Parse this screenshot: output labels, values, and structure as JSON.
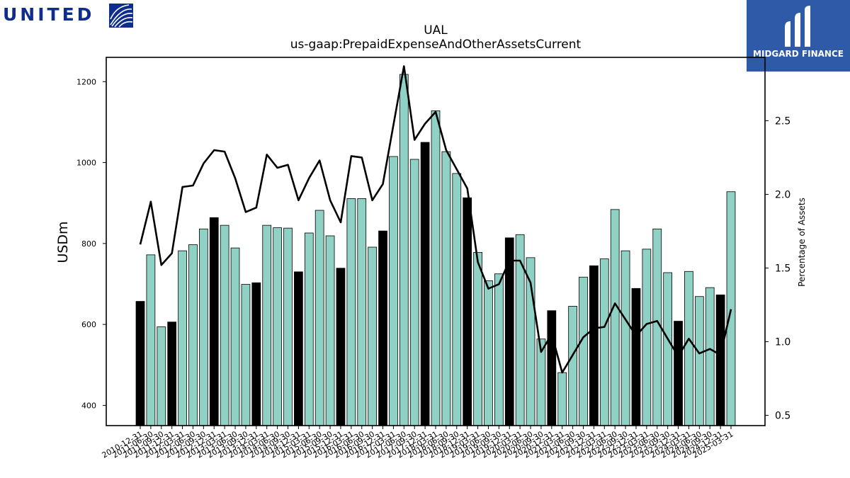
{
  "logos": {
    "united_text": "UNITED",
    "midgard_text": "MIDGARD FINANCE"
  },
  "colors": {
    "bar_normal": "#8fd1c4",
    "bar_highlight": "#000000",
    "line": "#000000",
    "united_blue": "#0f2d8c",
    "midgard_bg": "#2f5aa8"
  },
  "chart_data": {
    "type": "bar",
    "title": "UAL",
    "subtitle": "us-gaap:PrepaidExpenseAndOtherAssetsCurrent",
    "ylabel": "USDm",
    "y2label": "Percentage of Assets",
    "ylim": [
      350,
      1260
    ],
    "y2lim": [
      0.43,
      2.93
    ],
    "yticks": [
      400,
      600,
      800,
      1000,
      1200
    ],
    "y2ticks": [
      0.5,
      1.0,
      1.5,
      2.0,
      2.5
    ],
    "grid": false,
    "categories": [
      "2010-12-31",
      "2011-06-30",
      "2011-09-30",
      "2011-12-31",
      "2012-03-31",
      "2012-06-30",
      "2012-09-30",
      "2012-12-31",
      "2013-03-31",
      "2013-06-30",
      "2013-09-30",
      "2013-12-31",
      "2014-03-31",
      "2014-06-30",
      "2014-09-30",
      "2014-12-31",
      "2015-03-31",
      "2015-06-30",
      "2015-09-30",
      "2015-12-31",
      "2016-03-31",
      "2016-06-30",
      "2016-09-30",
      "2016-12-31",
      "2017-03-31",
      "2017-06-30",
      "2017-09-30",
      "2017-12-31",
      "2018-03-31",
      "2018-06-30",
      "2018-09-30",
      "2018-12-31",
      "2019-03-31",
      "2019-06-30",
      "2019-09-30",
      "2019-12-31",
      "2020-03-31",
      "2020-06-30",
      "2020-09-30",
      "2020-12-31",
      "2021-03-31",
      "2021-06-30",
      "2021-09-30",
      "2021-12-31",
      "2022-03-31",
      "2022-06-30",
      "2022-09-30",
      "2022-12-31",
      "2023-03-31",
      "2023-06-30",
      "2023-09-30",
      "2023-12-31",
      "2024-03-31",
      "2024-06-30",
      "2024-09-30",
      "2024-12-31",
      "2025-03-31"
    ],
    "tick_labels": [
      "2010-12-31",
      "2011-06-30",
      "2011-09-30",
      "2011-12-31",
      "2012-03-31",
      "2012-06-30",
      "2012-09-30",
      "2012-12-31",
      "2013-03-31",
      "2013-06-30",
      "2013-09-30",
      "2013-12-31",
      "2014-03-31",
      "2014-06-30",
      "2014-09-30",
      "2014-12-31",
      "2015-03-31",
      "2015-06-30",
      "2015-09-30",
      "2015-12-31",
      "2016-03-31",
      "2016-06-30",
      "2016-09-30",
      "2016-12-31",
      "2017-03-31",
      "2017-06-30",
      "2017-09-30",
      "2017-12-31",
      "2018-03-31",
      "2018-06-30",
      "2018-09-30",
      "2018-12-31",
      "2019-03-31",
      "2019-06-30",
      "2019-09-30",
      "2019-12-31",
      "2020-03-31",
      "2020-06-30",
      "2020-09-30",
      "2020-12-31",
      "2021-03-31",
      "2021-06-30",
      "2021-09-30",
      "2021-12-31",
      "2022-03-31",
      "2022-06-30",
      "2022-09-30",
      "2022-12-31",
      "2023-03-31",
      "2023-06-30",
      "2023-09-30",
      "2023-12-31",
      "2024-03-31",
      "2024-06-30",
      "2024-09-30",
      "2024-12-31",
      "2025-03-31"
    ],
    "series": [
      {
        "values": [
          657,
          772,
          594,
          606,
          782,
          797,
          836,
          864,
          845,
          789,
          699,
          703,
          845,
          839,
          838,
          730,
          826,
          882,
          819,
          739,
          911,
          911,
          791,
          831,
          1015,
          1218,
          1008,
          1050,
          1128,
          1027,
          973,
          913,
          778,
          708,
          725,
          814,
          822,
          765,
          564,
          634,
          481,
          645,
          717,
          745,
          762,
          884,
          782,
          689,
          786,
          836,
          728,
          608,
          731,
          669,
          691,
          673,
          928
        ]
      },
      {
        "values": [
          1.66,
          1.95,
          1.52,
          1.6,
          2.05,
          2.06,
          2.21,
          2.3,
          2.29,
          2.11,
          1.88,
          1.91,
          2.27,
          2.18,
          2.2,
          1.96,
          2.11,
          2.23,
          1.96,
          1.81,
          2.26,
          2.25,
          1.96,
          2.07,
          2.47,
          2.87,
          2.37,
          2.48,
          2.56,
          2.3,
          2.17,
          2.04,
          1.54,
          1.36,
          1.39,
          1.55,
          1.55,
          1.4,
          0.93,
          1.05,
          0.79,
          0.91,
          1.03,
          1.09,
          1.1,
          1.26,
          1.15,
          1.04,
          1.12,
          1.14,
          1.02,
          0.9,
          1.02,
          0.92,
          0.95,
          0.91,
          1.22
        ]
      }
    ],
    "highlight_indices": [
      0,
      3,
      7,
      11,
      15,
      19,
      23,
      27,
      31,
      35,
      39,
      43,
      47,
      51,
      55
    ]
  }
}
